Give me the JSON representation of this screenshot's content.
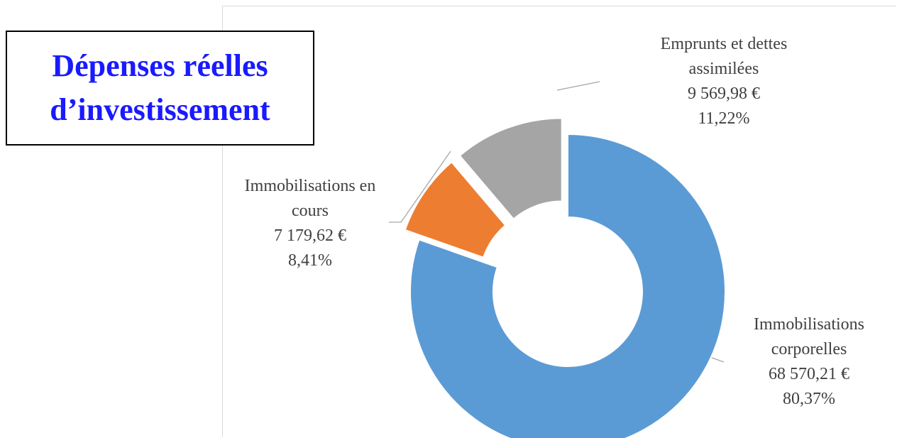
{
  "chart_data": {
    "type": "donut",
    "title": "Dépenses réelles d’investissement",
    "categories": [
      "Immobilisations corporelles",
      "Immobilisations en cours",
      "Emprunts et dettes assimilées"
    ],
    "values": [
      68570.21,
      7179.62,
      9569.98
    ],
    "value_labels": [
      "68 570,21 €",
      "7 179,62 €",
      "9 569,98 €"
    ],
    "percentages": [
      80.37,
      8.41,
      11.22
    ],
    "percentage_labels": [
      "80,37%",
      "8,41%",
      "11,22%"
    ],
    "colors": [
      "#5b9bd5",
      "#ed7d31",
      "#a5a5a5"
    ],
    "exploded": [
      false,
      true,
      true
    ]
  }
}
